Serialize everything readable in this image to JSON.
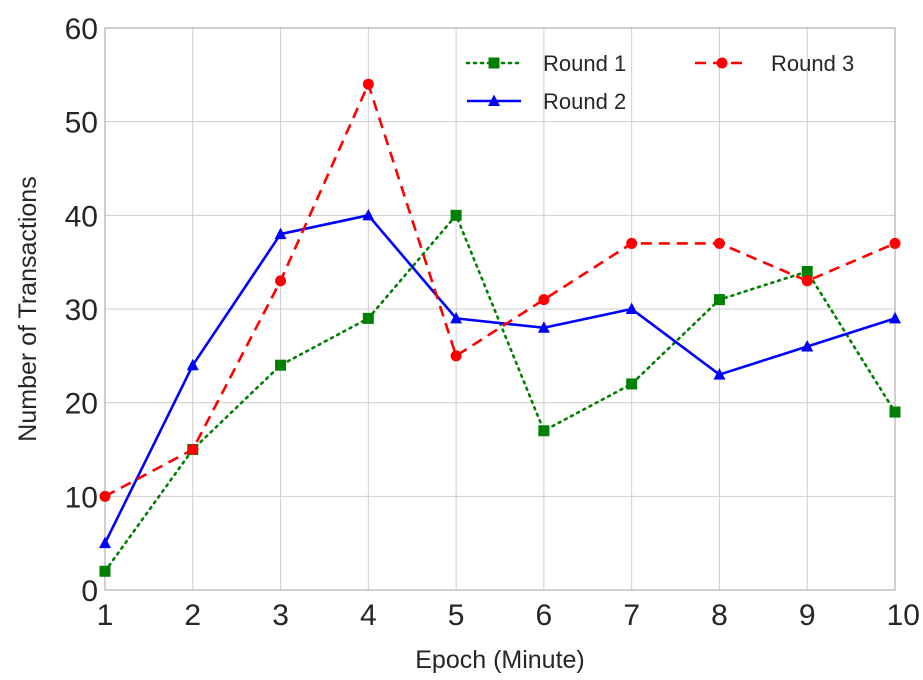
{
  "chart_data": {
    "type": "line",
    "xlabel": "Epoch (Minute)",
    "ylabel": "Number of Transactions",
    "x": [
      1,
      2,
      3,
      4,
      5,
      6,
      7,
      8,
      9,
      10
    ],
    "xlim": [
      1,
      10
    ],
    "ylim": [
      0,
      60
    ],
    "yticks": [
      0,
      10,
      20,
      30,
      40,
      50,
      60
    ],
    "grid": true,
    "legend_position": "top-right",
    "series": [
      {
        "name": "Round 1",
        "values": [
          2,
          15,
          24,
          29,
          40,
          17,
          22,
          31,
          34,
          19
        ],
        "color": "#008000",
        "line": "dotted",
        "marker": "square"
      },
      {
        "name": "Round 2",
        "values": [
          5,
          24,
          38,
          40,
          29,
          28,
          30,
          23,
          26,
          29
        ],
        "color": "#0000ff",
        "line": "solid",
        "marker": "triangle"
      },
      {
        "name": "Round 3",
        "values": [
          10,
          15,
          33,
          54,
          25,
          31,
          37,
          37,
          33,
          37
        ],
        "color": "#ff0000",
        "line": "dashed",
        "marker": "circle"
      }
    ]
  }
}
